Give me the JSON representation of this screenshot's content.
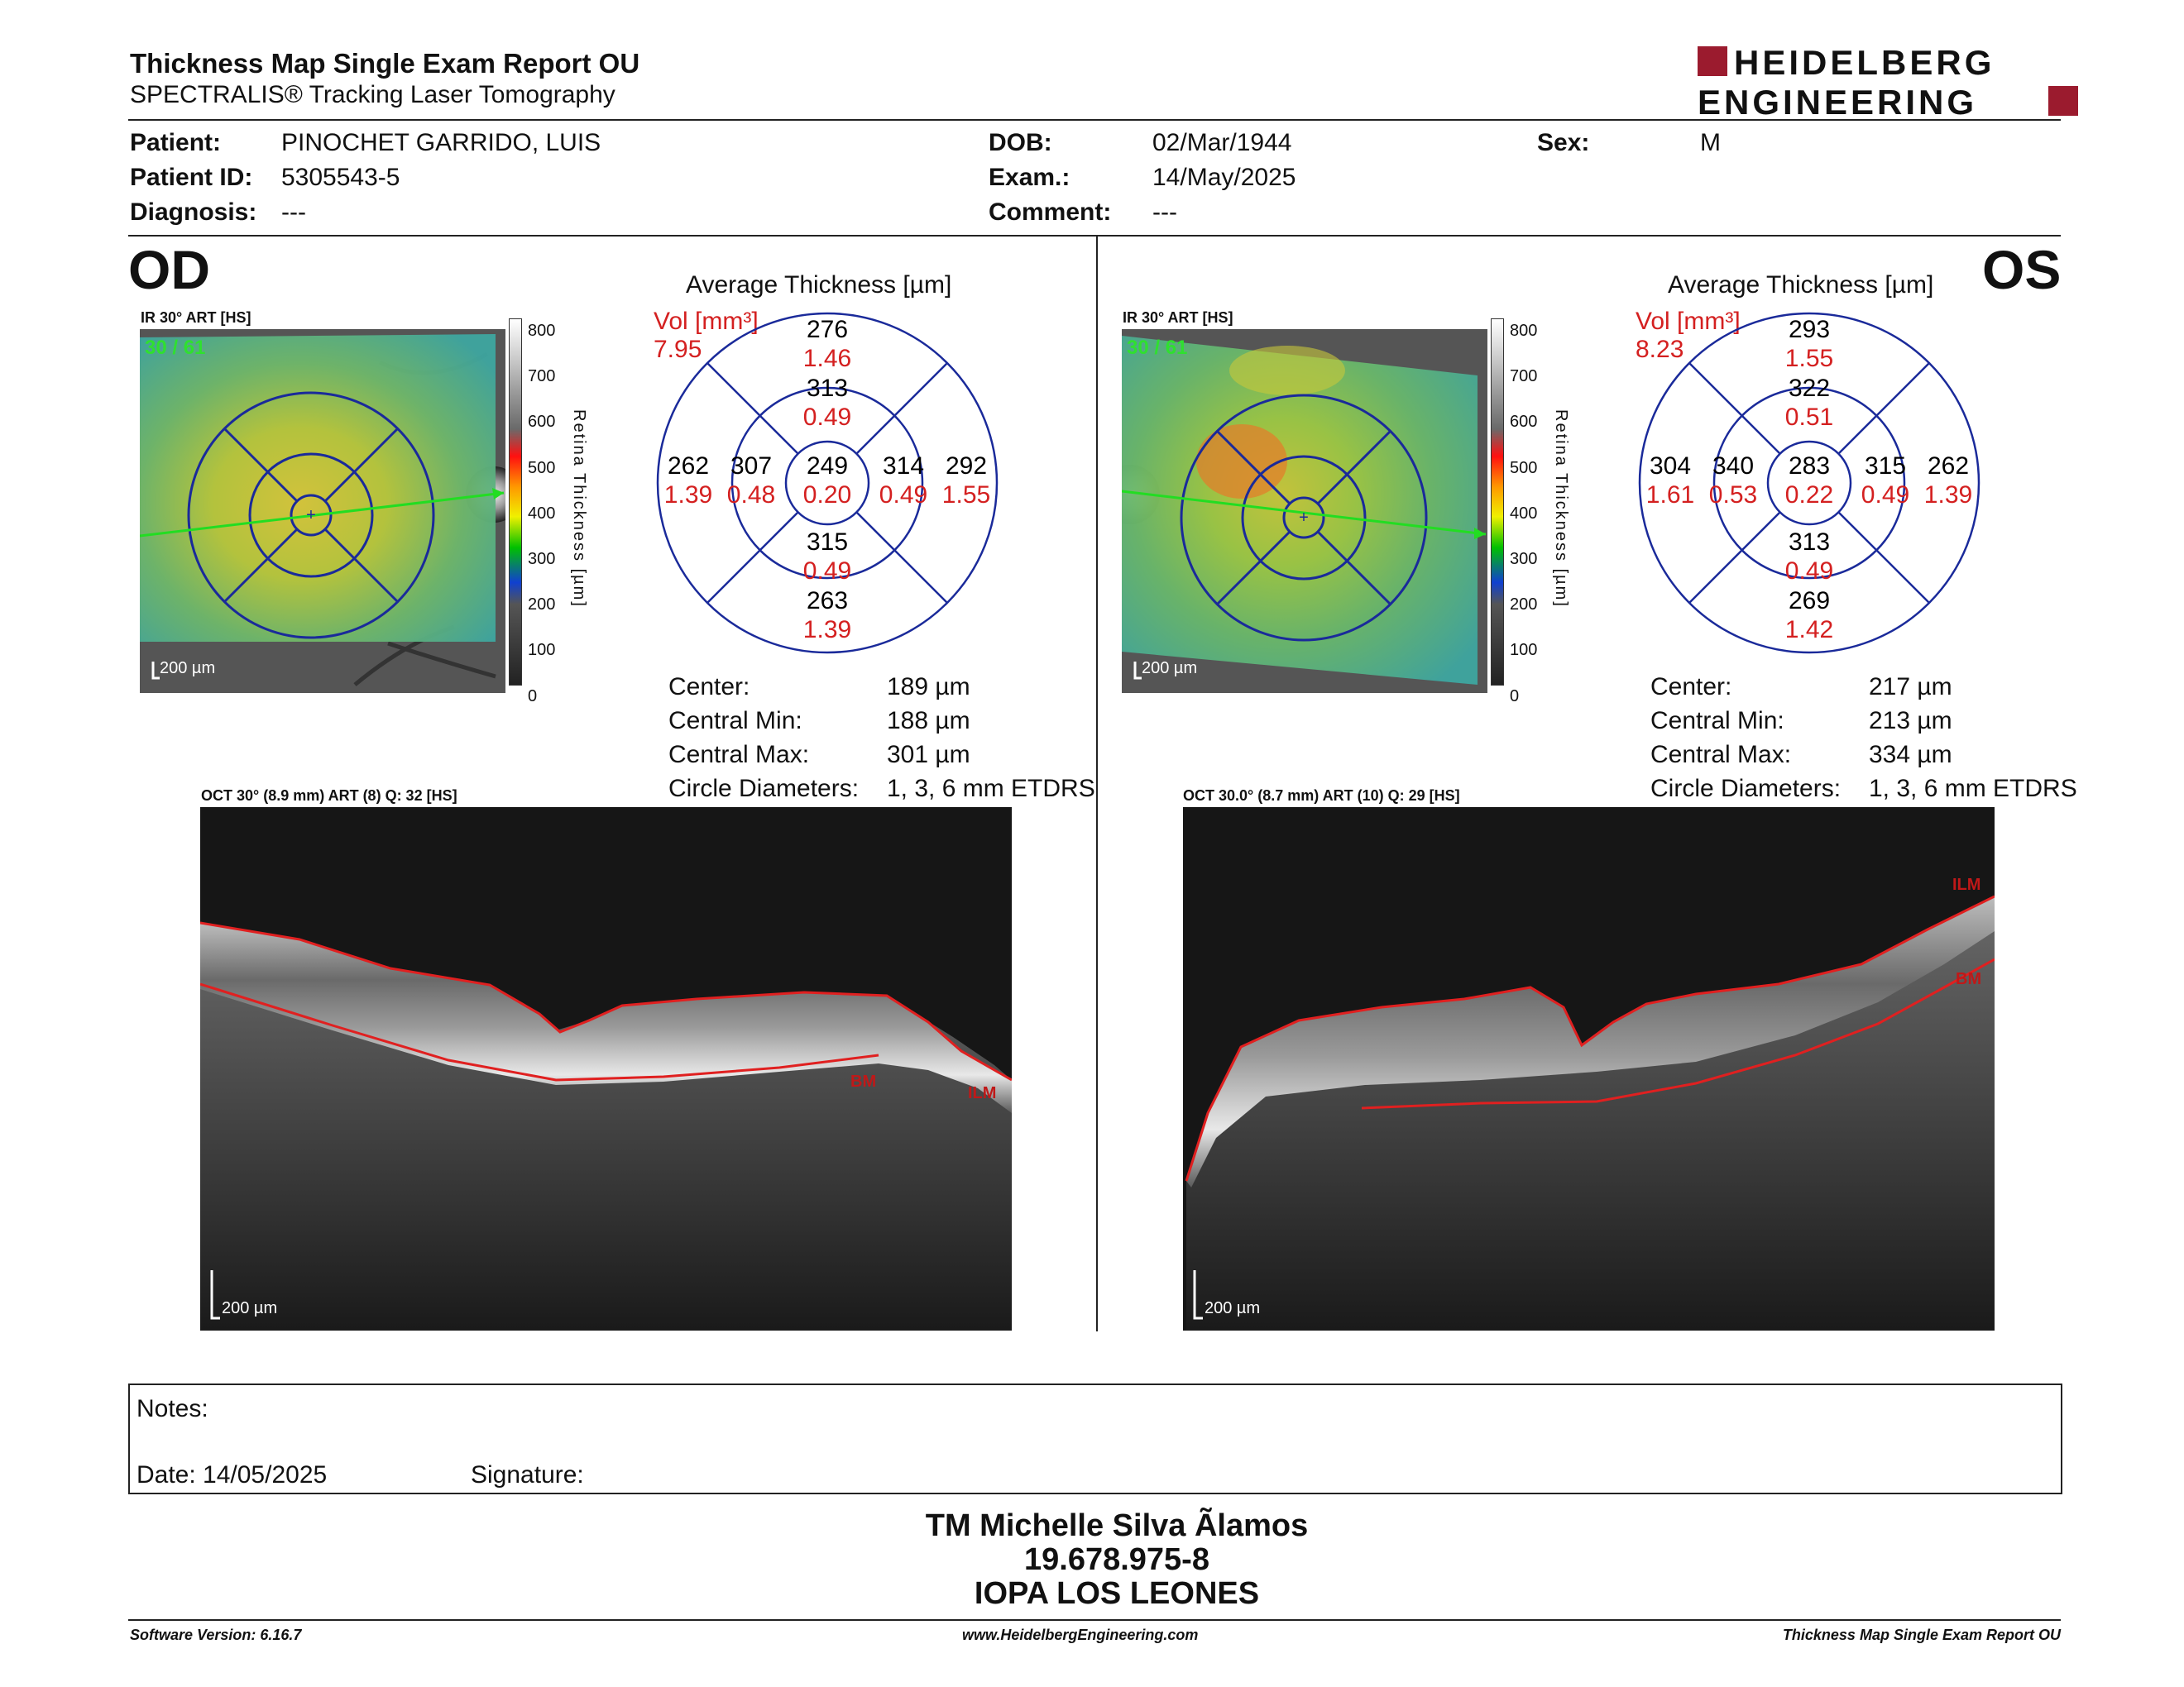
{
  "header": {
    "title": "Thickness Map Single Exam Report OU",
    "subtitle": "SPECTRALIS® Tracking Laser Tomography",
    "logo_line1": "HEIDELBERG",
    "logo_line2": "ENGINEERING",
    "logo_color": "#9b1b2e"
  },
  "patient": {
    "patient_label": "Patient:",
    "patient_value": "PINOCHET GARRIDO, LUIS",
    "id_label": "Patient ID:",
    "id_value": "5305543-5",
    "diagnosis_label": "Diagnosis:",
    "diagnosis_value": "---",
    "dob_label": "DOB:",
    "dob_value": "02/Mar/1944",
    "exam_label": "Exam.:",
    "exam_value": "14/May/2025",
    "comment_label": "Comment:",
    "comment_value": "---",
    "sex_label": "Sex:",
    "sex_value": "M"
  },
  "od": {
    "eye_label": "OD",
    "ir_label": "IR 30° ART [HS]",
    "frames": "30 / 61",
    "scale_label": "200 µm",
    "colorbar_title": "Retina Thickness [µm]",
    "colorbar_ticks": [
      "800",
      "700",
      "600",
      "500",
      "400",
      "300",
      "200",
      "100",
      "0"
    ],
    "avg_title": "Average Thickness [µm]",
    "vol_label": "Vol [mm³]",
    "vol_value": "7.95",
    "sectors": {
      "outer_top": {
        "t": "276",
        "v": "1.46"
      },
      "inner_top": {
        "t": "313",
        "v": "0.49"
      },
      "outer_left": {
        "t": "262",
        "v": "1.39"
      },
      "inner_left": {
        "t": "307",
        "v": "0.48"
      },
      "center": {
        "t": "249",
        "v": "0.20"
      },
      "inner_right": {
        "t": "314",
        "v": "0.49"
      },
      "outer_right": {
        "t": "292",
        "v": "1.55"
      },
      "inner_bottom": {
        "t": "315",
        "v": "0.49"
      },
      "outer_bottom": {
        "t": "263",
        "v": "1.39"
      }
    },
    "stats": {
      "center_label": "Center:",
      "center_value": "189 µm",
      "min_label": "Central Min:",
      "min_value": "188 µm",
      "max_label": "Central Max:",
      "max_value": "301 µm",
      "diam_label": "Circle Diameters:",
      "diam_value": "1, 3, 6 mm ETDRS"
    },
    "oct_label": "OCT 30° (8.9 mm) ART (8) Q: 32 [HS]",
    "oct_scale": "200 µm",
    "bm_label": "BM",
    "ilm_label": "ILM"
  },
  "os": {
    "eye_label": "OS",
    "ir_label": "IR 30° ART [HS]",
    "frames": "30 / 61",
    "scale_label": "200 µm",
    "colorbar_title": "Retina Thickness [µm]",
    "colorbar_ticks": [
      "800",
      "700",
      "600",
      "500",
      "400",
      "300",
      "200",
      "100",
      "0"
    ],
    "avg_title": "Average Thickness [µm]",
    "vol_label": "Vol [mm³]",
    "vol_value": "8.23",
    "sectors": {
      "outer_top": {
        "t": "293",
        "v": "1.55"
      },
      "inner_top": {
        "t": "322",
        "v": "0.51"
      },
      "outer_left": {
        "t": "304",
        "v": "1.61"
      },
      "inner_left": {
        "t": "340",
        "v": "0.53"
      },
      "center": {
        "t": "283",
        "v": "0.22"
      },
      "inner_right": {
        "t": "315",
        "v": "0.49"
      },
      "outer_right": {
        "t": "262",
        "v": "1.39"
      },
      "inner_bottom": {
        "t": "313",
        "v": "0.49"
      },
      "outer_bottom": {
        "t": "269",
        "v": "1.42"
      }
    },
    "stats": {
      "center_label": "Center:",
      "center_value": "217 µm",
      "min_label": "Central Min:",
      "min_value": "213 µm",
      "max_label": "Central Max:",
      "max_value": "334 µm",
      "diam_label": "Circle Diameters:",
      "diam_value": "1, 3, 6 mm ETDRS"
    },
    "oct_label": "OCT 30.0° (8.7 mm) ART (10) Q: 29 [HS]",
    "oct_scale": "200 µm",
    "bm_label": "BM",
    "ilm_label": "ILM"
  },
  "notes": {
    "notes_label": "Notes:",
    "date_label": "Date: 14/05/2025",
    "signature_label": "Signature:"
  },
  "signature_block": {
    "name": "TM Michelle Silva Ãlamos",
    "rut": "19.678.975-8",
    "place": "IOPA LOS LEONES"
  },
  "footer": {
    "software": "Software Version: 6.16.7",
    "website": "www.HeidelbergEngineering.com",
    "report": "Thickness Map Single Exam Report OU"
  }
}
